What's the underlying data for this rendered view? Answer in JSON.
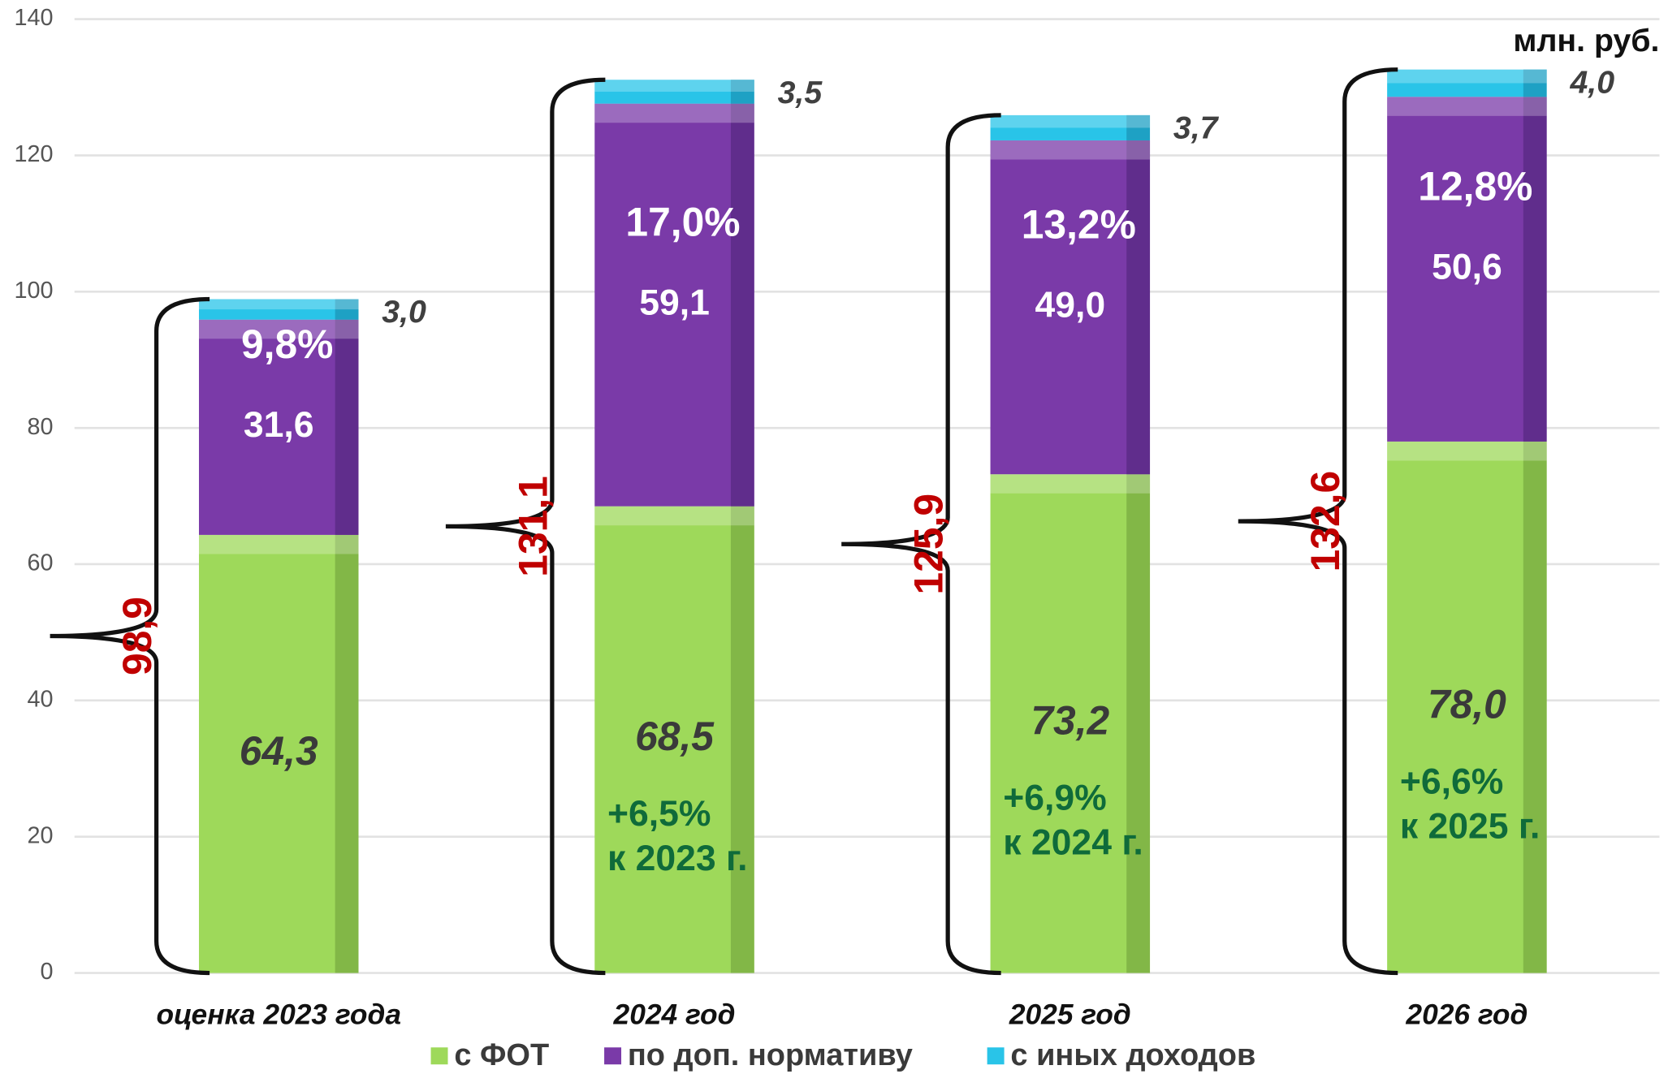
{
  "chart_data": {
    "type": "stacked_bar",
    "unit": "млн. руб.",
    "categories": [
      "оценка 2023 года",
      "2024 год",
      "2025 год",
      "2026 год"
    ],
    "series": [
      {
        "name": "с ФОТ",
        "color": "#9ed95a",
        "values": [
          64.3,
          68.5,
          73.2,
          78.0
        ],
        "value_labels": [
          "64,3",
          "68,5",
          "73,2",
          "78,0"
        ]
      },
      {
        "name": "по доп. нормативу",
        "color": "#7a3aa8",
        "values": [
          31.6,
          59.1,
          49.0,
          50.6
        ],
        "value_labels": [
          "31,6",
          "59,1",
          "49,0",
          "50,6"
        ]
      },
      {
        "name": "с иных доходов",
        "color": "#29c4e8",
        "values": [
          3.0,
          3.5,
          3.7,
          4.0
        ],
        "value_labels": [
          "3,0",
          "3,5",
          "3,7",
          "4,0"
        ]
      }
    ],
    "totals": [
      98.9,
      131.1,
      125.9,
      132.6
    ],
    "total_labels": [
      "98,9",
      "131,1",
      "125,9",
      "132,6"
    ],
    "share_labels": [
      "9,8%",
      "17,0%",
      "13,2%",
      "12,8%"
    ],
    "growth_labels": [
      null,
      [
        "+6,5%",
        "к 2023 г."
      ],
      [
        "+6,9%",
        "к 2024 г."
      ],
      [
        "+6,6%",
        "к 2025 г."
      ]
    ],
    "ylim": [
      0,
      140
    ],
    "yticks": [
      0,
      20,
      40,
      60,
      80,
      100,
      120,
      140
    ],
    "grid": true
  }
}
